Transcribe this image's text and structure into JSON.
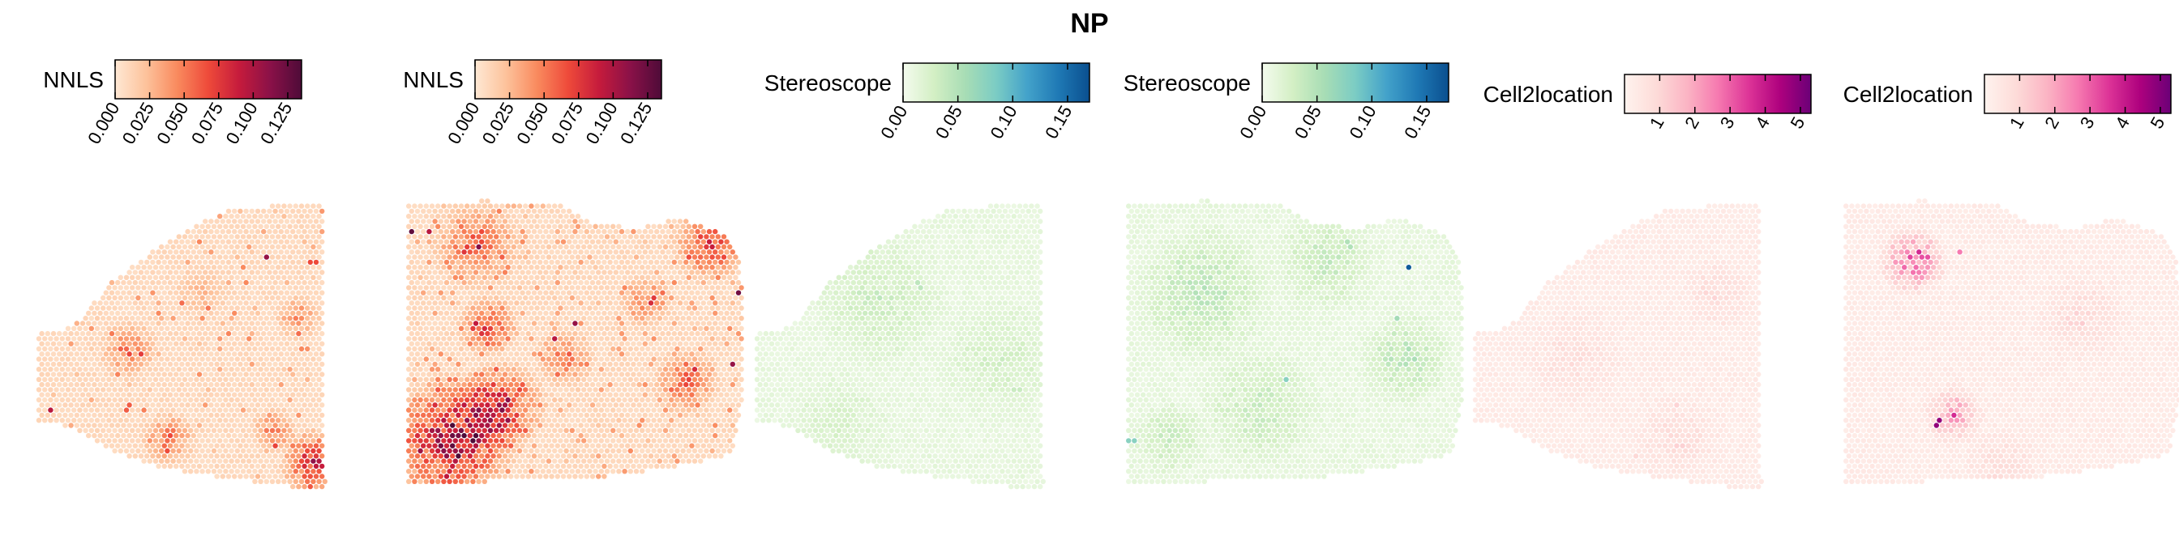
{
  "title": "NP",
  "colors": {
    "orange_ramp": [
      "#fee8d4",
      "#fdc29b",
      "#f98a5e",
      "#ee4a3a",
      "#c51b3c",
      "#8a1148",
      "#4e0b38"
    ],
    "green_blue_ramp": [
      "#f4fbee",
      "#d3efc4",
      "#a8ddb5",
      "#7bccc4",
      "#43a2ca",
      "#1f79b5",
      "#0a4f8f"
    ],
    "pink_purple_ramp": [
      "#fff3ee",
      "#fddcd9",
      "#fbb5c4",
      "#f67ab0",
      "#dd3497",
      "#ae017e",
      "#6b0077"
    ]
  },
  "chart_data": [
    {
      "type": "heatmap",
      "colorbar_label": "NNLS",
      "ramp": "orange_ramp",
      "scale_range": [
        0,
        0.135
      ],
      "tick_values": [
        0.0,
        0.025,
        0.05,
        0.075,
        0.1,
        0.125
      ],
      "tick_labels": [
        "0.000",
        "0.025",
        "0.050",
        "0.075",
        "0.100",
        "0.125"
      ],
      "tick_rotation": "rotated-60"
    },
    {
      "type": "heatmap",
      "colorbar_label": "NNLS",
      "ramp": "orange_ramp",
      "scale_range": [
        0,
        0.135
      ],
      "tick_values": [
        0.0,
        0.025,
        0.05,
        0.075,
        0.1,
        0.125
      ],
      "tick_labels": [
        "0.000",
        "0.025",
        "0.050",
        "0.075",
        "0.100",
        "0.125"
      ],
      "tick_rotation": "rotated-60"
    },
    {
      "type": "heatmap",
      "colorbar_label": "Stereoscope",
      "ramp": "green_blue_ramp",
      "scale_range": [
        0,
        0.17
      ],
      "tick_values": [
        0.0,
        0.05,
        0.1,
        0.15
      ],
      "tick_labels": [
        "0.00",
        "0.05",
        "0.10",
        "0.15"
      ],
      "tick_rotation": "rotated-60"
    },
    {
      "type": "heatmap",
      "colorbar_label": "Stereoscope",
      "ramp": "green_blue_ramp",
      "scale_range": [
        0,
        0.17
      ],
      "tick_values": [
        0.0,
        0.05,
        0.1,
        0.15
      ],
      "tick_labels": [
        "0.00",
        "0.05",
        "0.10",
        "0.15"
      ],
      "tick_rotation": "rotated-60"
    },
    {
      "type": "heatmap",
      "colorbar_label": "Cell2location",
      "ramp": "pink_purple_ramp",
      "scale_range": [
        0,
        5.3
      ],
      "tick_values": [
        1,
        2,
        3,
        4,
        5
      ],
      "tick_labels": [
        "1",
        "2",
        "3",
        "4",
        "5"
      ],
      "tick_rotation": "rotated-60"
    },
    {
      "type": "heatmap",
      "colorbar_label": "Cell2location",
      "ramp": "pink_purple_ramp",
      "scale_range": [
        0,
        5.3
      ],
      "tick_values": [
        1,
        2,
        3,
        4,
        5
      ],
      "tick_labels": [
        "1",
        "2",
        "3",
        "4",
        "5"
      ],
      "tick_rotation": "rotated-60"
    }
  ]
}
